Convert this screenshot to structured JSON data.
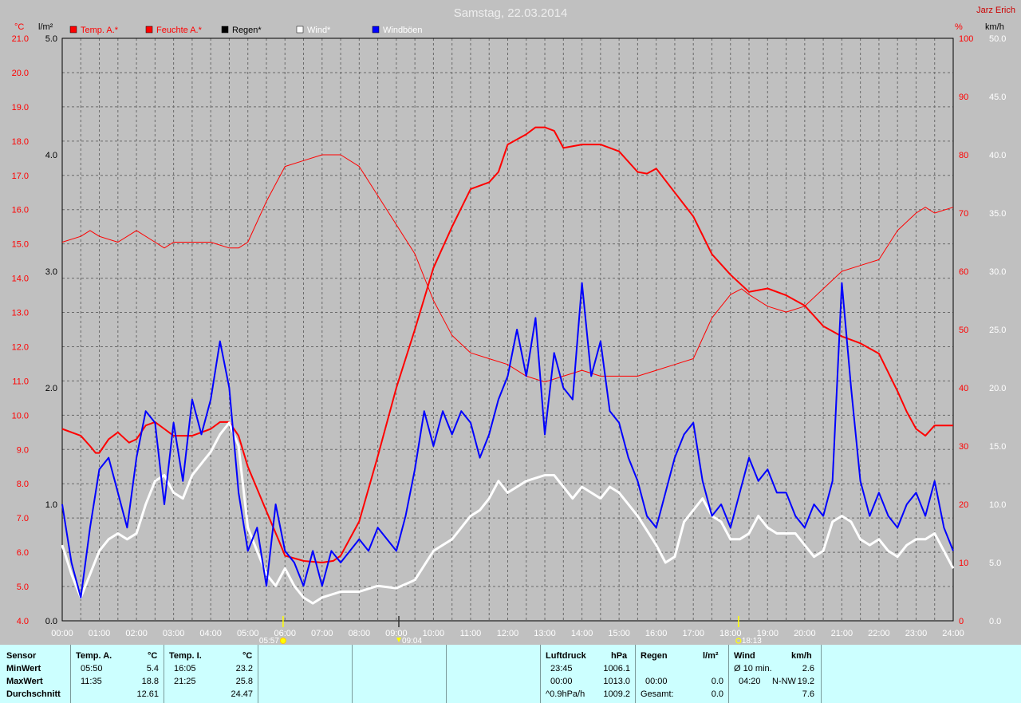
{
  "title": "Samstag, 22.03.2014",
  "author": "Jarz Erich",
  "units": {
    "left_temp": "°C",
    "left_rain": "l/m²",
    "right_hum": "%",
    "right_wind": "km/h"
  },
  "legend": [
    {
      "label": "Temp. A.*",
      "color": "#ff0000",
      "text_color": "#ff0000"
    },
    {
      "label": "Feuchte A.*",
      "color": "#ff0000",
      "text_color": "#ff0000"
    },
    {
      "label": "Regen*",
      "color": "#000000",
      "text_color": "#000000"
    },
    {
      "label": "Wind*",
      "color": "#ffffff",
      "text_color": "#ffffff"
    },
    {
      "label": "Windböen",
      "color": "#0000ff",
      "text_color": "#ffffff"
    }
  ],
  "events": [
    {
      "time": "05:57",
      "hour": 5.95,
      "icon": "sunrise-icon"
    },
    {
      "time": "09:04",
      "hour": 9.067,
      "icon": "moonset-icon"
    },
    {
      "time": "18:13",
      "hour": 18.217,
      "icon": "sunset-icon"
    }
  ],
  "chart_data": {
    "type": "line",
    "title": "Samstag, 22.03.2014",
    "x_ticks": [
      "00:00",
      "01:00",
      "02:00",
      "03:00",
      "04:00",
      "05:00",
      "06:00",
      "07:00",
      "08:00",
      "09:00",
      "10:00",
      "11:00",
      "12:00",
      "13:00",
      "14:00",
      "15:00",
      "16:00",
      "17:00",
      "18:00",
      "19:00",
      "20:00",
      "21:00",
      "22:00",
      "23:00",
      "24:00"
    ],
    "xlim": [
      0,
      24
    ],
    "axes": {
      "temp": {
        "label": "°C",
        "range": [
          4,
          21
        ],
        "ticks": [
          "4.0",
          "5.0",
          "6.0",
          "7.0",
          "8.0",
          "9.0",
          "10.0",
          "11.0",
          "12.0",
          "13.0",
          "14.0",
          "15.0",
          "16.0",
          "17.0",
          "18.0",
          "19.0",
          "20.0",
          "21.0"
        ]
      },
      "rain": {
        "label": "l/m²",
        "range": [
          0,
          5
        ],
        "ticks": [
          "0.0",
          "1.0",
          "2.0",
          "3.0",
          "4.0",
          "5.0"
        ]
      },
      "humidity": {
        "label": "%",
        "range": [
          0,
          100
        ],
        "ticks": [
          "0",
          "10",
          "20",
          "30",
          "40",
          "50",
          "60",
          "70",
          "80",
          "90",
          "100"
        ]
      },
      "wind": {
        "label": "km/h",
        "range": [
          0,
          50
        ],
        "ticks": [
          "0.0",
          "5.0",
          "10.0",
          "15.0",
          "20.0",
          "25.0",
          "30.0",
          "35.0",
          "40.0",
          "45.0",
          "50.0"
        ]
      }
    },
    "grid": true,
    "series": [
      {
        "name": "Temp. A.*",
        "axis": "temp",
        "color": "#ff0000",
        "width": 2,
        "x": [
          0,
          0.5,
          0.75,
          0.9,
          1.0,
          1.25,
          1.5,
          1.8,
          2.0,
          2.25,
          2.5,
          2.75,
          3.0,
          3.5,
          4.0,
          4.25,
          4.5,
          4.75,
          5.0,
          5.5,
          5.85,
          6.0,
          6.5,
          7.0,
          7.3,
          7.5,
          8.0,
          8.5,
          9.0,
          9.5,
          10.0,
          10.5,
          11.0,
          11.5,
          11.75,
          12.0,
          12.5,
          12.75,
          13.0,
          13.25,
          13.5,
          14.0,
          14.5,
          15.0,
          15.5,
          15.75,
          16.0,
          16.5,
          17.0,
          17.5,
          18.0,
          18.5,
          19.0,
          19.5,
          20.0,
          20.5,
          21.0,
          21.5,
          22.0,
          22.5,
          22.75,
          23.0,
          23.25,
          23.5,
          24.0
        ],
        "y": [
          9.6,
          9.4,
          9.1,
          8.9,
          8.9,
          9.3,
          9.5,
          9.2,
          9.3,
          9.7,
          9.8,
          9.6,
          9.4,
          9.4,
          9.6,
          9.8,
          9.8,
          9.4,
          8.5,
          7.2,
          6.3,
          5.9,
          5.75,
          5.7,
          5.75,
          5.9,
          6.9,
          8.8,
          10.8,
          12.5,
          14.3,
          15.5,
          16.6,
          16.8,
          17.1,
          17.9,
          18.2,
          18.4,
          18.4,
          18.3,
          17.8,
          17.9,
          17.9,
          17.7,
          17.1,
          17.05,
          17.2,
          16.5,
          15.8,
          14.7,
          14.1,
          13.6,
          13.7,
          13.5,
          13.2,
          12.6,
          12.3,
          12.1,
          11.8,
          10.7,
          10.1,
          9.6,
          9.4,
          9.7,
          9.7
        ]
      },
      {
        "name": "Feuchte A.*",
        "axis": "humidity",
        "color": "#ff0000",
        "width": 1,
        "x": [
          0,
          0.5,
          0.75,
          1.0,
          1.5,
          2.0,
          2.5,
          2.75,
          3.0,
          3.5,
          4.0,
          4.5,
          4.75,
          5.0,
          5.5,
          6.0,
          6.5,
          7.0,
          7.5,
          8.0,
          8.5,
          9.0,
          9.5,
          10.0,
          10.5,
          11.0,
          11.5,
          12.0,
          12.5,
          13.0,
          13.5,
          14.0,
          14.5,
          15.0,
          15.5,
          16.0,
          16.5,
          17.0,
          17.5,
          18.0,
          18.3,
          18.5,
          19.0,
          19.5,
          20.0,
          20.5,
          21.0,
          21.5,
          22.0,
          22.5,
          23.0,
          23.25,
          23.5,
          24.0
        ],
        "y": [
          65,
          66,
          67,
          66,
          65,
          67,
          65,
          64,
          65,
          65,
          65,
          64,
          64,
          65,
          72,
          78,
          79,
          80,
          80,
          78,
          73,
          68,
          63,
          55,
          49,
          46,
          45,
          44,
          42,
          41,
          42,
          43,
          42,
          42,
          42,
          43,
          44,
          45,
          52,
          56,
          57,
          56,
          54,
          53,
          54,
          57,
          60,
          61,
          62,
          67,
          70,
          71,
          70,
          71
        ]
      },
      {
        "name": "Regen*",
        "axis": "rain",
        "color": "#000000",
        "width": 1,
        "x": [
          0,
          24
        ],
        "y": [
          0,
          0
        ]
      },
      {
        "name": "Wind*",
        "axis": "wind",
        "color": "#ffffff",
        "width": 3,
        "x": [
          0,
          0.25,
          0.5,
          0.75,
          1.0,
          1.25,
          1.5,
          1.75,
          2.0,
          2.25,
          2.5,
          2.75,
          3.0,
          3.25,
          3.5,
          3.75,
          4.0,
          4.25,
          4.5,
          4.75,
          5.0,
          5.25,
          5.5,
          5.75,
          6.0,
          6.25,
          6.5,
          6.75,
          7.0,
          7.5,
          8.0,
          8.5,
          9.0,
          9.5,
          10.0,
          10.5,
          11.0,
          11.25,
          11.5,
          11.75,
          12.0,
          12.5,
          13.0,
          13.25,
          13.5,
          13.75,
          14.0,
          14.25,
          14.5,
          14.75,
          15.0,
          15.5,
          16.0,
          16.25,
          16.5,
          16.75,
          17.0,
          17.25,
          17.5,
          17.75,
          18.0,
          18.25,
          18.5,
          18.75,
          19.0,
          19.25,
          19.5,
          19.75,
          20.0,
          20.25,
          20.5,
          20.75,
          21.0,
          21.25,
          21.5,
          21.75,
          22.0,
          22.25,
          22.5,
          22.75,
          23.0,
          23.25,
          23.5,
          23.75,
          24.0
        ],
        "y": [
          6.5,
          4.0,
          2.0,
          4.0,
          6.0,
          7.0,
          7.5,
          7.0,
          7.5,
          10.0,
          12.0,
          12.5,
          11.0,
          10.5,
          12.5,
          13.5,
          14.5,
          16.0,
          17.0,
          15.0,
          8.0,
          6.0,
          4.0,
          3.0,
          4.5,
          3.0,
          2.0,
          1.5,
          2.0,
          2.5,
          2.5,
          3.0,
          2.8,
          3.5,
          6.0,
          7.0,
          9.0,
          9.5,
          10.5,
          12.0,
          11.0,
          12.0,
          12.5,
          12.5,
          11.5,
          10.5,
          11.5,
          11.0,
          10.5,
          11.5,
          11.0,
          9.0,
          6.5,
          5.0,
          5.5,
          8.5,
          9.5,
          10.5,
          9.0,
          8.5,
          7.0,
          7.0,
          7.5,
          9.0,
          8.0,
          7.5,
          7.5,
          7.5,
          6.5,
          5.5,
          6.0,
          8.5,
          9.0,
          8.5,
          7.0,
          6.5,
          7.0,
          6.0,
          5.5,
          6.5,
          7.0,
          7.0,
          7.5,
          6.0,
          4.5
        ]
      },
      {
        "name": "Windböen",
        "axis": "wind",
        "color": "#0000ff",
        "width": 2,
        "x": [
          0,
          0.25,
          0.5,
          0.75,
          1.0,
          1.25,
          1.5,
          1.75,
          2.0,
          2.25,
          2.5,
          2.75,
          3.0,
          3.25,
          3.5,
          3.75,
          4.0,
          4.25,
          4.5,
          4.75,
          5.0,
          5.25,
          5.5,
          5.75,
          6.0,
          6.25,
          6.5,
          6.75,
          7.0,
          7.25,
          7.5,
          7.75,
          8.0,
          8.25,
          8.5,
          8.75,
          9.0,
          9.25,
          9.5,
          9.75,
          10.0,
          10.25,
          10.5,
          10.75,
          11.0,
          11.25,
          11.5,
          11.75,
          12.0,
          12.25,
          12.5,
          12.75,
          13.0,
          13.25,
          13.5,
          13.75,
          14.0,
          14.25,
          14.5,
          14.75,
          15.0,
          15.25,
          15.5,
          15.75,
          16.0,
          16.25,
          16.5,
          16.75,
          17.0,
          17.25,
          17.5,
          17.75,
          18.0,
          18.25,
          18.5,
          18.75,
          19.0,
          19.25,
          19.5,
          19.75,
          20.0,
          20.25,
          20.5,
          20.75,
          21.0,
          21.25,
          21.5,
          21.75,
          22.0,
          22.25,
          22.5,
          22.75,
          23.0,
          23.25,
          23.5,
          23.75,
          24.0
        ],
        "y": [
          10,
          5,
          2,
          8,
          13,
          14,
          11,
          8,
          14,
          18,
          17,
          10,
          17,
          12,
          19,
          16,
          19,
          24,
          20,
          11,
          6,
          8,
          3,
          10,
          6,
          5,
          3,
          6,
          3,
          6,
          5,
          6,
          7,
          6,
          8,
          7,
          6,
          9,
          13,
          18,
          15,
          18,
          16,
          18,
          17,
          14,
          16,
          19,
          21,
          25,
          21,
          26,
          16,
          23,
          20,
          19,
          29,
          21,
          24,
          18,
          17,
          14,
          12,
          9,
          8,
          11,
          14,
          16,
          17,
          12,
          9,
          10,
          8,
          11,
          14,
          12,
          13,
          11,
          11,
          9,
          8,
          10,
          9,
          12,
          29,
          20,
          12,
          9,
          11,
          9,
          8,
          10,
          11,
          9,
          12,
          8,
          6
        ]
      }
    ]
  },
  "table": {
    "headers": {
      "sensor": "Sensor",
      "temp_a": "Temp. A.",
      "temp_a_unit": "°C",
      "temp_i": "Temp. I.",
      "temp_i_unit": "°C",
      "luftdruck": "Luftdruck",
      "luftdruck_unit": "hPa",
      "regen": "Regen",
      "regen_unit": "l/m²",
      "wind": "Wind",
      "wind_unit": "km/h"
    },
    "rows": [
      {
        "label": "MinWert",
        "ta_time": "05:50",
        "ta_val": "5.4",
        "ti_time": "16:05",
        "ti_val": "23.2",
        "lp_time": "23:45",
        "lp_val": "1006.1",
        "rg_time": "",
        "rg_val": "",
        "w_label": "Ø 10 min.",
        "w_dir": "",
        "w_val": "2.6"
      },
      {
        "label": "MaxWert",
        "ta_time": "11:35",
        "ta_val": "18.8",
        "ti_time": "21:25",
        "ti_val": "25.8",
        "lp_time": "00:00",
        "lp_val": "1013.0",
        "rg_time": "00:00",
        "rg_val": "0.0",
        "w_label": "04:20",
        "w_dir": "N-NW",
        "w_val": "19.2"
      },
      {
        "label": "Durchschnitt",
        "ta_time": "",
        "ta_val": "12.61",
        "ti_time": "",
        "ti_val": "24.47",
        "lp_time": "^0.9hPa/h",
        "lp_val": "1009.2",
        "rg_time": "Gesamt:",
        "rg_val": "0.0",
        "w_label": "",
        "w_dir": "",
        "w_val": "7.6"
      }
    ]
  }
}
